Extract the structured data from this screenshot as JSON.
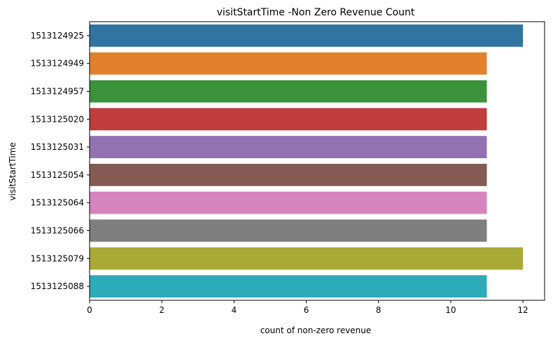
{
  "chart_data": {
    "type": "bar",
    "orientation": "horizontal",
    "title": "visitStartTime -Non Zero Revenue Count",
    "xlabel": "count of non-zero revenue",
    "ylabel": "visitStartTime",
    "categories": [
      "1513124925",
      "1513124949",
      "1513124957",
      "1513125020",
      "1513125031",
      "1513125054",
      "1513125064",
      "1513125066",
      "1513125079",
      "1513125088"
    ],
    "values": [
      12,
      11,
      11,
      11,
      11,
      11,
      11,
      11,
      12,
      11
    ],
    "colors": [
      "#3274a1",
      "#e1812c",
      "#3a923a",
      "#c03d3e",
      "#9372b2",
      "#845b53",
      "#d684bd",
      "#7f7f7f",
      "#a9aa35",
      "#2eabb8"
    ],
    "xlim": [
      0,
      12.6
    ],
    "xticks": [
      0,
      2,
      4,
      6,
      8,
      10,
      12
    ],
    "grid": false,
    "legend": "none"
  }
}
